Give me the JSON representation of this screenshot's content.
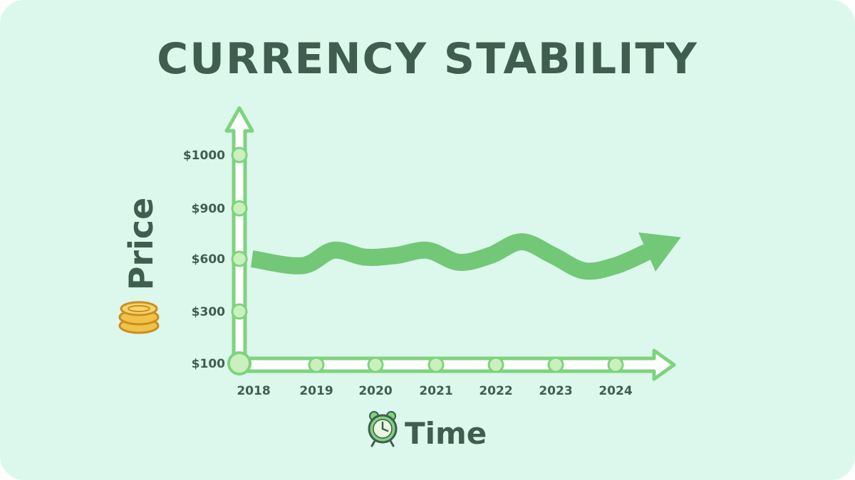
{
  "colors": {
    "background": "#dcf7ec",
    "text": "#3f5e50",
    "axis_stroke": "#7ed37f",
    "axis_fill": "#ffffff",
    "tick_marker": "#c9f0bd",
    "trend": "#72c877",
    "coin": "#f1c24a"
  },
  "icons": {
    "y_axis": "coin-stack-icon",
    "x_axis": "alarm-clock-icon"
  },
  "chart_data": {
    "type": "line",
    "title": "CURRENCY STABILITY",
    "xlabel": "Time",
    "ylabel": "Price",
    "y_ticks": [
      "$1000",
      "$900",
      "$600",
      "$300",
      "$100"
    ],
    "x_ticks": [
      "2018",
      "2019",
      "2020",
      "2021",
      "2022",
      "2023",
      "2024"
    ],
    "grid": false,
    "legend": "none",
    "series": [
      {
        "x": [
          2018.2,
          2019.0,
          2019.5,
          2020.0,
          2020.5,
          2021.0,
          2021.5,
          2022.0,
          2022.5,
          2023.0,
          2023.5,
          2024.0,
          2024.5
        ],
        "y": [
          600,
          560,
          650,
          610,
          620,
          650,
          580,
          620,
          700,
          620,
          530,
          560,
          640
        ]
      }
    ]
  }
}
